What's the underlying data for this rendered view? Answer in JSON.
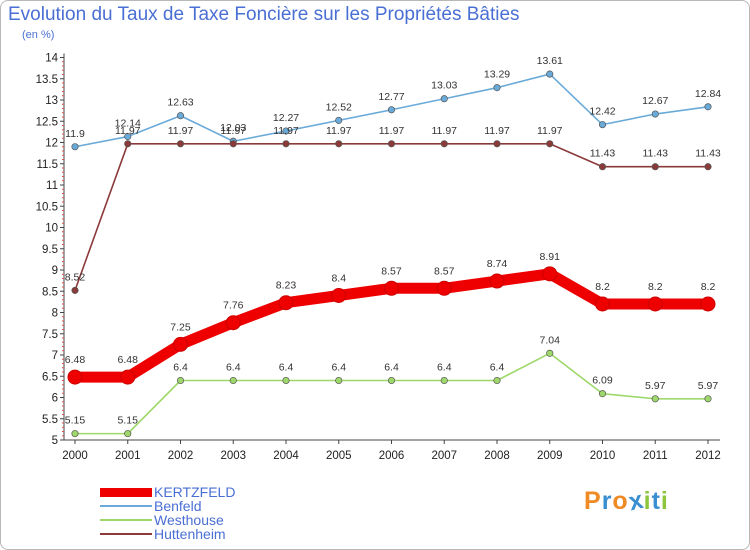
{
  "chart_data": {
    "type": "line",
    "title": "Evolution du Taux de Taxe Foncière sur les Propriétés Bâties",
    "subtitle": "(en %)",
    "x": [
      "2000",
      "2001",
      "2002",
      "2003",
      "2004",
      "2005",
      "2006",
      "2007",
      "2008",
      "2009",
      "2010",
      "2011",
      "2012"
    ],
    "ylim": [
      5,
      14
    ],
    "yticks": [
      "5",
      "5.5",
      "6",
      "6.5",
      "7",
      "7.5",
      "8",
      "8.5",
      "9",
      "9.5",
      "10",
      "10.5",
      "11",
      "11.5",
      "12",
      "12.5",
      "13",
      "13.5",
      "14"
    ],
    "grid": false,
    "legend_position": "bottom-left",
    "series": [
      {
        "name": "KERTZFELD",
        "color": "#ee0000",
        "values": [
          6.48,
          6.48,
          7.25,
          7.76,
          8.23,
          8.4,
          8.57,
          8.57,
          8.74,
          8.91,
          8.2,
          8.2,
          8.2
        ],
        "labels": [
          "6.48",
          "6.48",
          "7.25",
          "7.76",
          "8.23",
          "8.4",
          "8.57",
          "8.57",
          "8.74",
          "8.91",
          "8.2",
          "8.2",
          "8.2"
        ]
      },
      {
        "name": "Benfeld",
        "color": "#6aaad8",
        "values": [
          11.9,
          12.14,
          12.63,
          12.03,
          12.27,
          12.52,
          12.77,
          13.03,
          13.29,
          13.61,
          12.42,
          12.67,
          12.84
        ],
        "labels": [
          "11.9",
          "12.14",
          "12.63",
          "12.03",
          "12.27",
          "12.52",
          "12.77",
          "13.03",
          "13.29",
          "13.61",
          "12.42",
          "12.67",
          "12.84"
        ]
      },
      {
        "name": "Westhouse",
        "color": "#9ed86a",
        "values": [
          5.15,
          5.15,
          6.4,
          6.4,
          6.4,
          6.4,
          6.4,
          6.4,
          6.4,
          7.04,
          6.09,
          5.97,
          5.97
        ],
        "labels": [
          "5.15",
          "5.15",
          "6.4",
          "6.4",
          "6.4",
          "6.4",
          "6.4",
          "6.4",
          "6.4",
          "7.04",
          "6.09",
          "5.97",
          "5.97"
        ]
      },
      {
        "name": "Huttenheim",
        "color": "#8b3a3a",
        "values": [
          8.52,
          11.97,
          11.97,
          11.97,
          11.97,
          11.97,
          11.97,
          11.97,
          11.97,
          11.97,
          11.43,
          11.43,
          11.43
        ],
        "labels": [
          "8.52",
          "11.97",
          "11.97",
          "11.97",
          "11.97",
          "11.97",
          "11.97",
          "11.97",
          "11.97",
          "11.97",
          "11.43",
          "11.43",
          "11.43"
        ]
      }
    ]
  },
  "brand": {
    "text": "Proxiti",
    "letters": [
      "P",
      "r",
      "o",
      "x",
      "i",
      "t",
      "i"
    ],
    "colors": [
      "#f08a24",
      "#3a8fd0",
      "#f08a24",
      "#3a8fd0",
      "#8cc63f",
      "#3a8fd0",
      "#8cc63f"
    ]
  }
}
